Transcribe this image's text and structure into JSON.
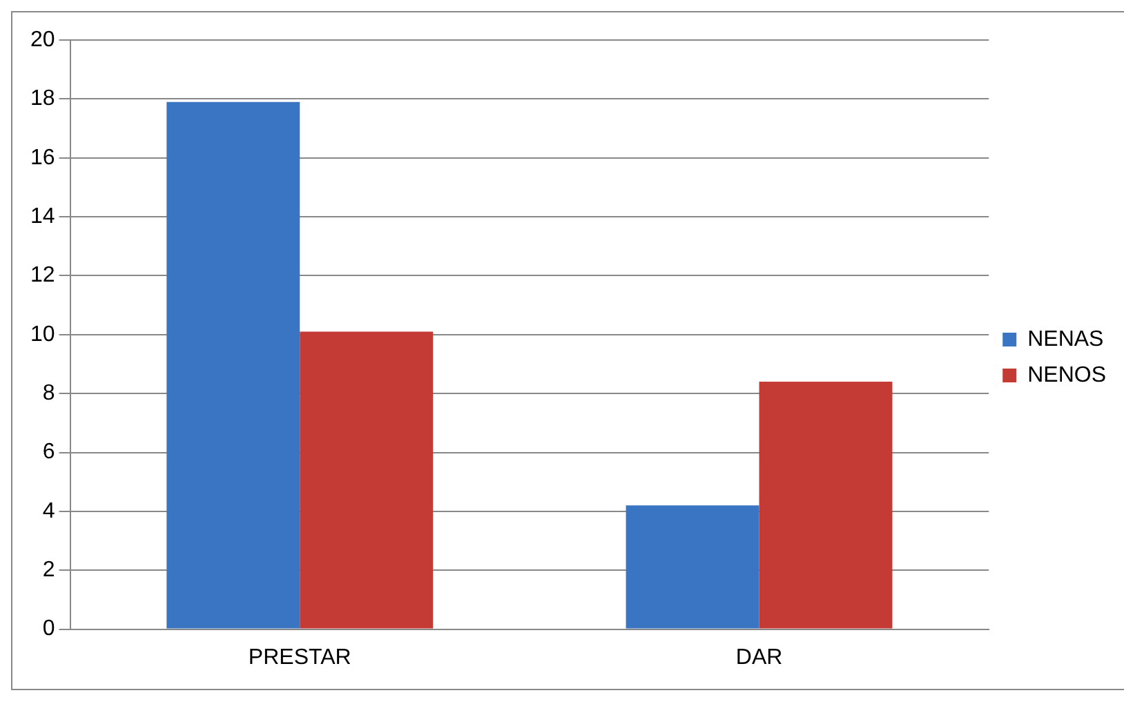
{
  "chart_data": {
    "type": "bar",
    "categories": [
      "PRESTAR",
      "DAR"
    ],
    "series": [
      {
        "name": "NENAS",
        "color": "#3a75c4",
        "values": [
          17.9,
          4.2
        ]
      },
      {
        "name": "NENOS",
        "color": "#c43b35",
        "values": [
          10.1,
          8.4
        ]
      }
    ],
    "ylim": [
      0,
      20
    ],
    "yticks": [
      0,
      2,
      4,
      6,
      8,
      10,
      12,
      14,
      16,
      18,
      20
    ],
    "grid": "y",
    "legend": "right"
  }
}
